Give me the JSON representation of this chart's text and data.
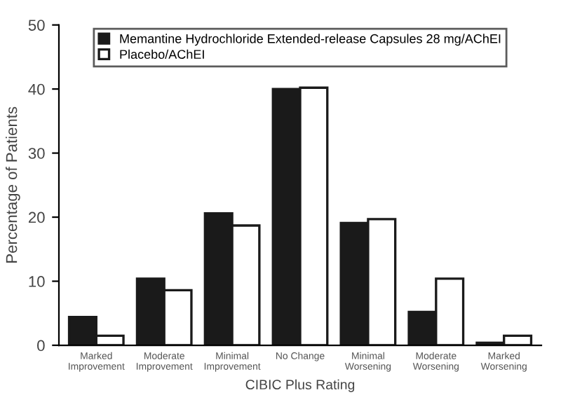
{
  "chart_data": {
    "type": "bar",
    "xlabel": "CIBIC Plus Rating",
    "ylabel": "Percentage of Patients",
    "categories": [
      "Marked\nImprovement",
      "Moderate\nImprovement",
      "Minimal\nImprovement",
      "No Change",
      "Minimal\nWorsening",
      "Moderate\nWorsening",
      "Marked\nWorsening"
    ],
    "series": [
      {
        "name": "Memantine Hydrochloride Extended-release Capsules 28 mg/AChEI",
        "color": "#1a1a1a",
        "values": [
          4.4,
          10.4,
          20.6,
          40.0,
          19.1,
          5.2,
          0.4
        ]
      },
      {
        "name": "Placebo/AChEI",
        "color": "#ffffff",
        "values": [
          1.5,
          8.6,
          18.7,
          40.2,
          19.7,
          10.4,
          1.5
        ]
      }
    ],
    "ylim": [
      0,
      50
    ],
    "yticks": [
      0,
      10,
      20,
      30,
      40,
      50
    ],
    "legend": "top",
    "grid": false
  }
}
